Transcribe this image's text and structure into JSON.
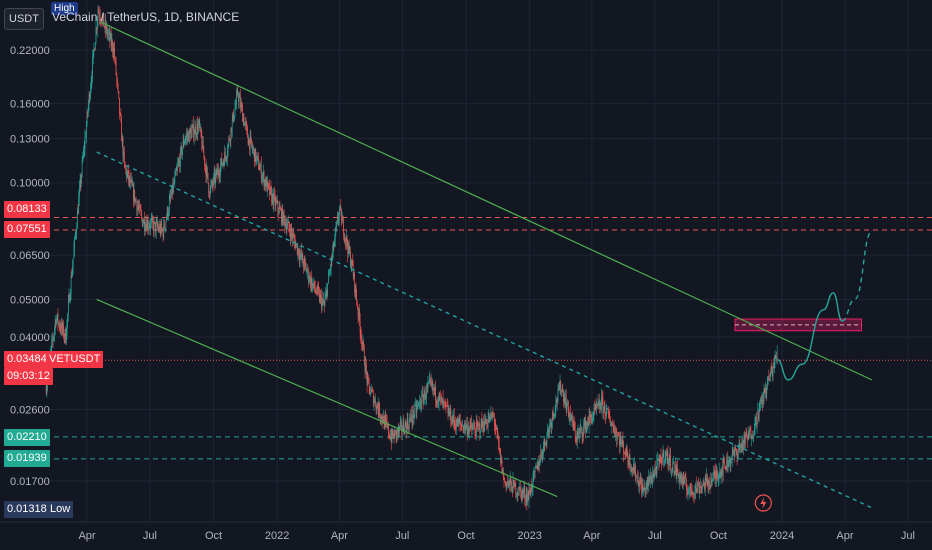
{
  "header": {
    "currency_button": "USDT",
    "symbol_title": "VeChain / TetherUS, 1D, BINANCE",
    "high_badge": "High"
  },
  "price_tags": {
    "res_top": {
      "label": "0.08133",
      "color": "#f23645"
    },
    "res_bottom": {
      "label": "0.07551",
      "color": "#f23645"
    },
    "last_price": {
      "label": "0.03484",
      "timer": "09:03:12",
      "symbol": "VETUSDT",
      "color": "#f23645"
    },
    "sup_top": {
      "label": "0.02210",
      "color": "#22ab94"
    },
    "sup_bottom": {
      "label": "0.01939",
      "color": "#22ab94"
    },
    "low": {
      "label": "0.01318",
      "name": "Low",
      "color": "#2a3a5c"
    }
  },
  "chart_data": {
    "type": "candlestick",
    "y_scale": "log",
    "y_ticks": [
      "0.22000",
      "0.16000",
      "0.13000",
      "0.10000",
      "0.06500",
      "0.05000",
      "0.04000",
      "0.02600",
      "0.01700"
    ],
    "y_tick_values": [
      0.22,
      0.16,
      0.13,
      0.1,
      0.065,
      0.05,
      0.04,
      0.026,
      0.017
    ],
    "x_ticks": [
      "Apr",
      "Jul",
      "Oct",
      "2022",
      "Apr",
      "Jul",
      "Oct",
      "2023",
      "Apr",
      "Jul",
      "Oct",
      "2024",
      "Apr",
      "Jul"
    ],
    "x_tick_dates": [
      "2021-04",
      "2021-07",
      "2021-10",
      "2022-01",
      "2022-04",
      "2022-07",
      "2022-10",
      "2023-01",
      "2023-04",
      "2023-07",
      "2023-10",
      "2024-01",
      "2024-04",
      "2024-07"
    ],
    "price_path": [
      [
        "2021-02-01",
        0.03
      ],
      [
        "2021-02-15",
        0.045
      ],
      [
        "2021-03-01",
        0.04
      ],
      [
        "2021-03-20",
        0.09
      ],
      [
        "2021-04-17",
        0.28
      ],
      [
        "2021-05-10",
        0.22
      ],
      [
        "2021-05-25",
        0.11
      ],
      [
        "2021-06-20",
        0.08
      ],
      [
        "2021-07-20",
        0.075
      ],
      [
        "2021-08-20",
        0.13
      ],
      [
        "2021-09-10",
        0.14
      ],
      [
        "2021-09-25",
        0.095
      ],
      [
        "2021-10-20",
        0.12
      ],
      [
        "2021-11-05",
        0.17
      ],
      [
        "2021-11-20",
        0.13
      ],
      [
        "2021-12-20",
        0.095
      ],
      [
        "2022-01-20",
        0.075
      ],
      [
        "2022-02-20",
        0.055
      ],
      [
        "2022-03-10",
        0.048
      ],
      [
        "2022-04-01",
        0.085
      ],
      [
        "2022-04-20",
        0.06
      ],
      [
        "2022-05-12",
        0.03
      ],
      [
        "2022-06-15",
        0.022
      ],
      [
        "2022-07-10",
        0.024
      ],
      [
        "2022-08-10",
        0.03
      ],
      [
        "2022-09-15",
        0.024
      ],
      [
        "2022-10-15",
        0.023
      ],
      [
        "2022-11-10",
        0.025
      ],
      [
        "2022-11-25",
        0.017
      ],
      [
        "2022-12-30",
        0.0155
      ],
      [
        "2023-01-25",
        0.022
      ],
      [
        "2023-02-15",
        0.03
      ],
      [
        "2023-03-10",
        0.022
      ],
      [
        "2023-04-15",
        0.027
      ],
      [
        "2023-05-10",
        0.022
      ],
      [
        "2023-06-15",
        0.016
      ],
      [
        "2023-07-15",
        0.02
      ],
      [
        "2023-08-20",
        0.016
      ],
      [
        "2023-09-20",
        0.017
      ],
      [
        "2023-10-25",
        0.02
      ],
      [
        "2023-11-20",
        0.023
      ],
      [
        "2023-12-10",
        0.03
      ],
      [
        "2023-12-25",
        0.036
      ]
    ],
    "projection": [
      [
        "2023-12-25",
        0.035
      ],
      [
        "2024-01-10",
        0.031
      ],
      [
        "2024-01-30",
        0.034
      ],
      [
        "2024-03-01",
        0.047
      ],
      [
        "2024-03-15",
        0.052
      ],
      [
        "2024-03-28",
        0.044
      ],
      [
        "2024-04-15",
        0.05
      ],
      [
        "2024-05-10",
        0.075
      ]
    ],
    "lines": {
      "channel_top": [
        [
          "2021-04-20",
          0.26
        ],
        [
          "2024-05-10",
          0.031
        ]
      ],
      "channel_bottom": [
        [
          "2021-04-15",
          0.05
        ],
        [
          "2023-02-10",
          0.0155
        ]
      ],
      "mid_trend": [
        [
          "2021-04-15",
          0.12
        ],
        [
          "2024-05-10",
          0.0145
        ]
      ]
    },
    "levels": {
      "resistance": [
        0.08133,
        0.07551
      ],
      "support": [
        0.0221,
        0.01939
      ],
      "last": 0.03484
    },
    "zone": {
      "from": "2023-10-25",
      "to": "2024-04-25",
      "low": 0.0415,
      "high": 0.0445
    },
    "colors": {
      "up": "#26a69a",
      "down": "#ef5350",
      "channel": "#4caf50",
      "mid": "#1fa2a0",
      "projection": "#26a69a",
      "zone": "#e91e63"
    }
  }
}
